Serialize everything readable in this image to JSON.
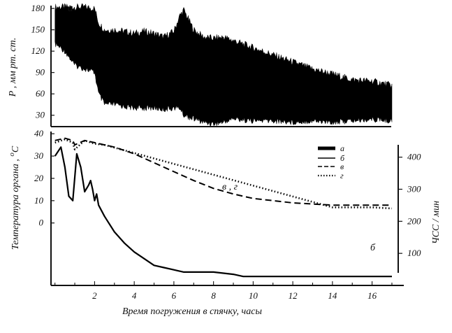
{
  "chart_data": [
    {
      "type": "area",
      "panel_label": "а",
      "ylabel": "Р , мм рт. ст.",
      "ylim": [
        14,
        184
      ],
      "yticks": [
        "180",
        "150",
        "120",
        "90",
        "60",
        "30"
      ],
      "ytick_values": [
        180,
        150,
        120,
        90,
        60,
        30
      ],
      "xlim": [
        -0.2,
        17.6
      ],
      "series": [
        {
          "x": [
            0,
            0.5,
            1.0,
            1.5,
            2.0,
            2.2,
            2.5,
            3.0,
            3.5,
            4.0,
            4.5,
            5.0,
            5.5,
            6.0,
            6.3,
            6.5,
            7.0,
            7.5,
            8.0,
            8.5,
            9.0,
            10.0,
            11.0,
            12.0,
            13.0,
            14.0,
            15.0,
            16.0,
            17.0
          ],
          "upper": [
            182,
            182,
            182,
            182,
            180,
            160,
            150,
            150,
            148,
            145,
            148,
            145,
            140,
            148,
            170,
            178,
            150,
            140,
            138,
            140,
            135,
            125,
            115,
            105,
            95,
            88,
            80,
            78,
            72
          ],
          "lower": [
            130,
            120,
            100,
            95,
            90,
            60,
            45,
            45,
            42,
            40,
            40,
            40,
            38,
            40,
            40,
            30,
            25,
            20,
            18,
            20,
            25,
            22,
            22,
            20,
            22,
            20,
            22,
            24,
            22
          ]
        }
      ]
    },
    {
      "type": "line",
      "xlabel": "Время погружения в спячку, часы",
      "ylabel": "Температура органа , ",
      "ylabel_sup": "о",
      "ylabel_sub": "С",
      "ylabel_right": "ЧСС / мин",
      "xlim": [
        -0.2,
        17.6
      ],
      "xticks": [
        "2",
        "4",
        "6",
        "8",
        "10",
        "12",
        "14",
        "16"
      ],
      "xtick_values": [
        2,
        4,
        6,
        8,
        10,
        12,
        14,
        16
      ],
      "ylim": [
        -28,
        41
      ],
      "yticks": [
        "40",
        "30",
        "20",
        "10",
        "0"
      ],
      "ytick_values": [
        40,
        30,
        20,
        10,
        0
      ],
      "ylim_right": [
        0,
        480
      ],
      "yticks_right": [
        "400",
        "300",
        "200",
        "100"
      ],
      "ytick_values_right": [
        400,
        300,
        200,
        100
      ],
      "series": [
        {
          "name": "б",
          "style": "solid",
          "x": [
            0,
            0.3,
            0.5,
            0.7,
            0.9,
            1.1,
            1.3,
            1.5,
            1.7,
            1.8,
            1.9,
            2.0,
            2.1,
            2.2,
            2.5,
            3.0,
            3.5,
            4.0,
            4.5,
            5.0,
            5.5,
            6.0,
            6.5,
            7.0,
            8.0,
            9.0,
            9.5,
            10.0,
            12.0,
            14.0,
            17.0
          ],
          "y": [
            30,
            34,
            25,
            12,
            10,
            31,
            25,
            14,
            17,
            19,
            15,
            10,
            13,
            8,
            3,
            -4,
            -9,
            -13,
            -16,
            -19,
            -20,
            -21,
            -22,
            -22,
            -22,
            -23,
            -24,
            -24,
            -24,
            -24,
            -24
          ]
        },
        {
          "name": "в",
          "style": "dashed",
          "x": [
            0,
            0.5,
            0.9,
            1.0,
            1.5,
            2.0,
            2.5,
            3.0,
            4.0,
            5.0,
            6.0,
            7.0,
            8.0,
            9.0,
            10.0,
            11.0,
            12.0,
            13.0,
            14.0,
            15.0,
            16.0,
            17.0
          ],
          "y": [
            37,
            38,
            37,
            35,
            37,
            36,
            35,
            34,
            31,
            27,
            23,
            19,
            15.5,
            13,
            11,
            10,
            9,
            8.5,
            8,
            8,
            8,
            8
          ]
        },
        {
          "name": "г",
          "style": "dotted",
          "x": [
            0,
            0.5,
            0.9,
            1.0,
            1.5,
            2.0,
            2.5,
            14.0,
            15.0,
            16.0,
            17.0
          ],
          "y": [
            36,
            37.5,
            36,
            33,
            37,
            35.5,
            35,
            7,
            7,
            7,
            6.5
          ]
        }
      ],
      "annotations": [
        "в , г",
        "б"
      ],
      "legend": {
        "placement": "top-right",
        "entries": [
          {
            "label": "а",
            "style": "thick"
          },
          {
            "label": "б",
            "style": "solid"
          },
          {
            "label": "в",
            "style": "dashed"
          },
          {
            "label": "г",
            "style": "dotted"
          }
        ]
      }
    }
  ]
}
